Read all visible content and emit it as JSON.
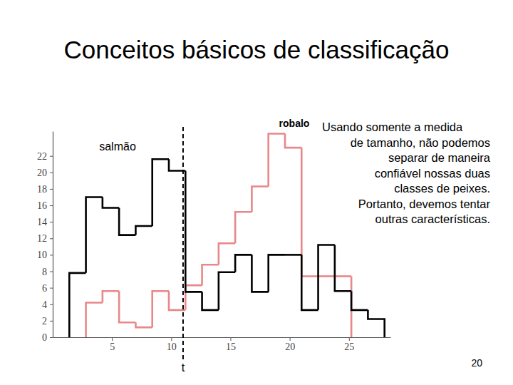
{
  "chart_data": {
    "type": "histogram",
    "title": "Conceitos básicos de classificação",
    "bins": [
      1.4,
      2.8,
      4.2,
      5.6,
      7,
      8.4,
      9.8,
      11.2,
      12.6,
      14,
      15.4,
      16.8,
      18.2,
      19.6,
      21,
      22.4,
      23.8,
      25.2,
      26.6,
      28
    ],
    "series": [
      {
        "name": "robalo",
        "color": "#e8888a",
        "values": [
          0,
          4.2,
          5.6,
          1.8,
          1.2,
          5.6,
          3.3,
          6.3,
          8.8,
          11.4,
          15.2,
          18.3,
          24.7,
          23,
          7.4,
          7.4,
          7.4,
          0,
          0
        ]
      },
      {
        "name": "salmão",
        "color": "#000000",
        "values": [
          7.8,
          17,
          15.7,
          12.4,
          13.5,
          21.6,
          20.2,
          5.5,
          3.3,
          7.9,
          10,
          5.5,
          10,
          10,
          3.3,
          11.2,
          5.6,
          3.3,
          2.2
        ]
      }
    ],
    "xlim": [
      0,
      28.5
    ],
    "xticks": [
      5,
      10,
      15,
      20,
      25
    ],
    "ylim": [
      0,
      25
    ],
    "yticks": [
      0,
      2,
      4,
      6,
      8,
      10,
      12,
      14,
      16,
      18,
      20,
      22
    ],
    "grid": false,
    "threshold": {
      "value": 11,
      "label": "t"
    },
    "annotation": [
      "Usando somente a medida",
      "de tamanho, não podemos",
      "separar de maneira",
      "confiável nossas duas",
      "classes de peixes.",
      "Portanto, devemos tentar",
      "outras características."
    ],
    "page_number": 20
  }
}
